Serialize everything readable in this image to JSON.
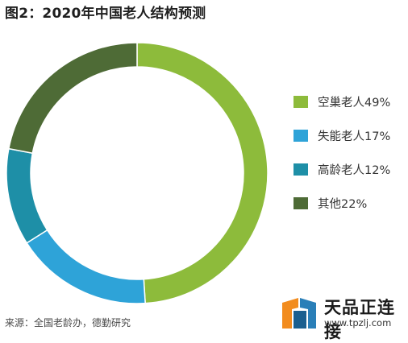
{
  "title": "图2：2020年中国老人结构预测",
  "source": "来源：全国老龄办，德勤研究",
  "watermark": {
    "name": "天品正连接",
    "url": "www.tpzlj.com"
  },
  "chart_data": {
    "type": "pie",
    "variant": "donut",
    "title": "图2：2020年中国老人结构预测",
    "slices": [
      {
        "label": "空巢老人49%",
        "value": 49,
        "color": "#8dbb3b"
      },
      {
        "label": "失能老人17%",
        "value": 17,
        "color": "#2ea3d8"
      },
      {
        "label": "高龄老人12%",
        "value": 12,
        "color": "#1e8fa7"
      },
      {
        "label": "其他22%",
        "value": 22,
        "color": "#4e6b36"
      }
    ],
    "legend_position": "right"
  }
}
